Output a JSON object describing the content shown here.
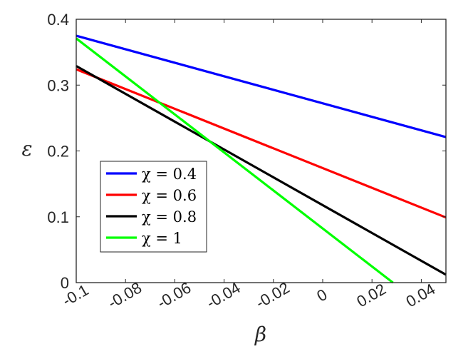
{
  "chart_data": {
    "type": "line",
    "xlabel": "β",
    "ylabel": "ε",
    "xlim": [
      -0.1,
      0.05
    ],
    "ylim": [
      0,
      0.4
    ],
    "xticks": [
      -0.1,
      -0.08,
      -0.06,
      -0.04,
      -0.02,
      0,
      0.02,
      0.04
    ],
    "xtick_labels": [
      "-0.1",
      "-0.08",
      "-0.06",
      "-0.04",
      "-0.02",
      "0",
      "0.02",
      "0.04"
    ],
    "yticks": [
      0,
      0.1,
      0.2,
      0.3,
      0.4
    ],
    "ytick_labels": [
      "0",
      "0.1",
      "0.2",
      "0.3",
      "0.4"
    ],
    "grid": false,
    "legend_position": "left-center",
    "series": [
      {
        "name": "χ = 0.4",
        "color": "#0000ff",
        "x": [
          -0.1,
          0.05
        ],
        "y": [
          0.375,
          0.221
        ]
      },
      {
        "name": "χ = 0.6",
        "color": "#ff0000",
        "x": [
          -0.1,
          0.05
        ],
        "y": [
          0.324,
          0.099
        ]
      },
      {
        "name": "χ = 0.8",
        "color": "#000000",
        "x": [
          -0.1,
          0.05
        ],
        "y": [
          0.329,
          0.012
        ]
      },
      {
        "name": "χ = 1",
        "color": "#00ff00",
        "x": [
          -0.1,
          0.0285
        ],
        "y": [
          0.371,
          0.0
        ]
      }
    ]
  }
}
